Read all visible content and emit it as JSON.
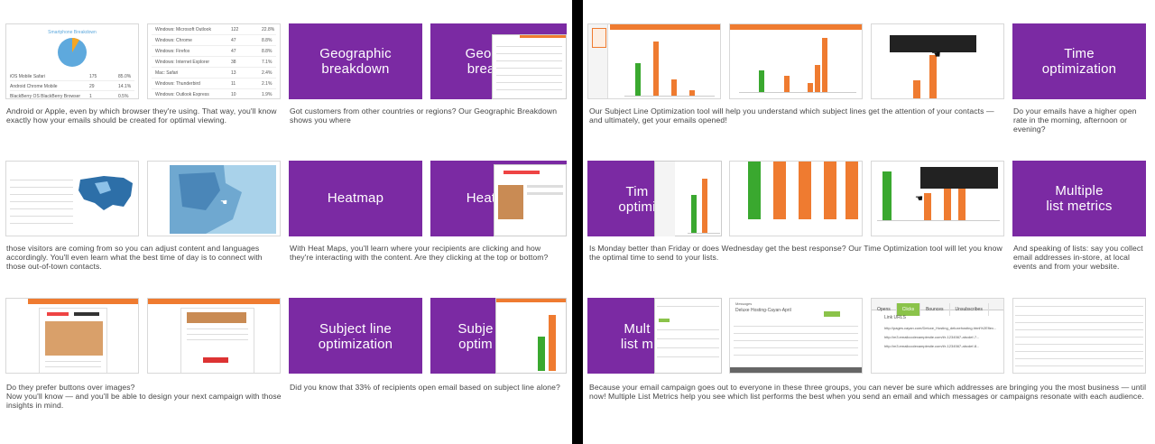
{
  "left": {
    "captions": {
      "c1": "Android or Apple, even by which browser they're using. That way, you'll know exactly how your emails should be created for optimal viewing.",
      "c2": "Got customers from other countries or regions? Our Geographic Breakdown shows you where",
      "c3": "those visitors are coming from so you can adjust content and languages accordingly.  You'll even learn what the best time of day is to connect with those out-of-town contacts.",
      "c4": "With Heat Maps, you'll learn where your recipients are clicking and how they're interacting with the content. Are they clicking at the top or bottom?",
      "c5": "Do they prefer buttons over images?\nNow you'll know — and you'll be able to design your next campaign with those insights in mind.",
      "c6": "Did you know that 33% of recipients open email based on subject line alone?"
    },
    "tiles": {
      "geo": "Geographic\nbreakdown",
      "geo_partial": "Geogr\nbreak",
      "heat": "Heatmap",
      "heat_partial": "Heat",
      "subject": "Subject line\noptimization",
      "subject_partial": "Subje\noptim"
    },
    "pie": {
      "title": "Smartphone Breakdown",
      "rows": [
        {
          "name": "iOS Mobile Safari",
          "count": "175",
          "pct": "85.0%"
        },
        {
          "name": "Android Chrome Mobile",
          "count": "29",
          "pct": "14.1%"
        },
        {
          "name": "BlackBerry OS BlackBerry Browser",
          "count": "1",
          "pct": "0.5%"
        }
      ]
    },
    "clients": [
      {
        "name": "Windows: Microsoft Outlook",
        "count": "122",
        "pct": "22.8%"
      },
      {
        "name": "Windows: Chrome",
        "count": "47",
        "pct": "8.8%"
      },
      {
        "name": "Windows: Firefox",
        "count": "47",
        "pct": "8.8%"
      },
      {
        "name": "Windows: Internet Explorer",
        "count": "38",
        "pct": "7.1%"
      },
      {
        "name": "Mac: Safari",
        "count": "13",
        "pct": "2.4%"
      },
      {
        "name": "Windows: Thunderbird",
        "count": "11",
        "pct": "2.1%"
      },
      {
        "name": "Windows: Outlook Express",
        "count": "10",
        "pct": "1.9%"
      }
    ]
  },
  "right": {
    "captions": {
      "c1": "Our Subject Line Optimization tool will help you understand which subject lines get the attention of your contacts — and ultimately, get your emails opened!",
      "c2": "Do your emails have a higher open rate in the morning, afternoon or evening?",
      "c3": "Is Monday better than Friday or does Wednesday get the best response? Our Time Optimization tool will let you know the optimal time to send to your lists.",
      "c4": "And speaking of lists: say you collect email addresses in-store, at local events and from your website.",
      "c5": "Because your email campaign goes out to everyone in these three groups, you can never be sure which addresses are bringing you the most business — until now!  Multiple List Metrics help you see which list performs the best when you send an email and which messages or campaigns resonate with each audience."
    },
    "tiles": {
      "time": "Time\noptimization",
      "time_partial": "Tim\noptimi",
      "multi": "Multiple\nlist metrics",
      "multi_partial": "Mult\nlist m"
    },
    "tabs": [
      "Opens",
      "Clicks",
      "Bounces",
      "Unsubscribes"
    ],
    "link_header": "Link URLS",
    "links": [
      "http://pages.cayan.com/Deluxe_Hosting_deluxehosting.html%2Eflex...",
      "http://m3.emailcoolexamplesite.com/t/r-1234567-abcdef-7...",
      "http://m3.emailcoolexamplesite.com/t/r-1234567-abcdef-8..."
    ],
    "msg_title": "Deluxe Hosting-Cayan-April"
  }
}
